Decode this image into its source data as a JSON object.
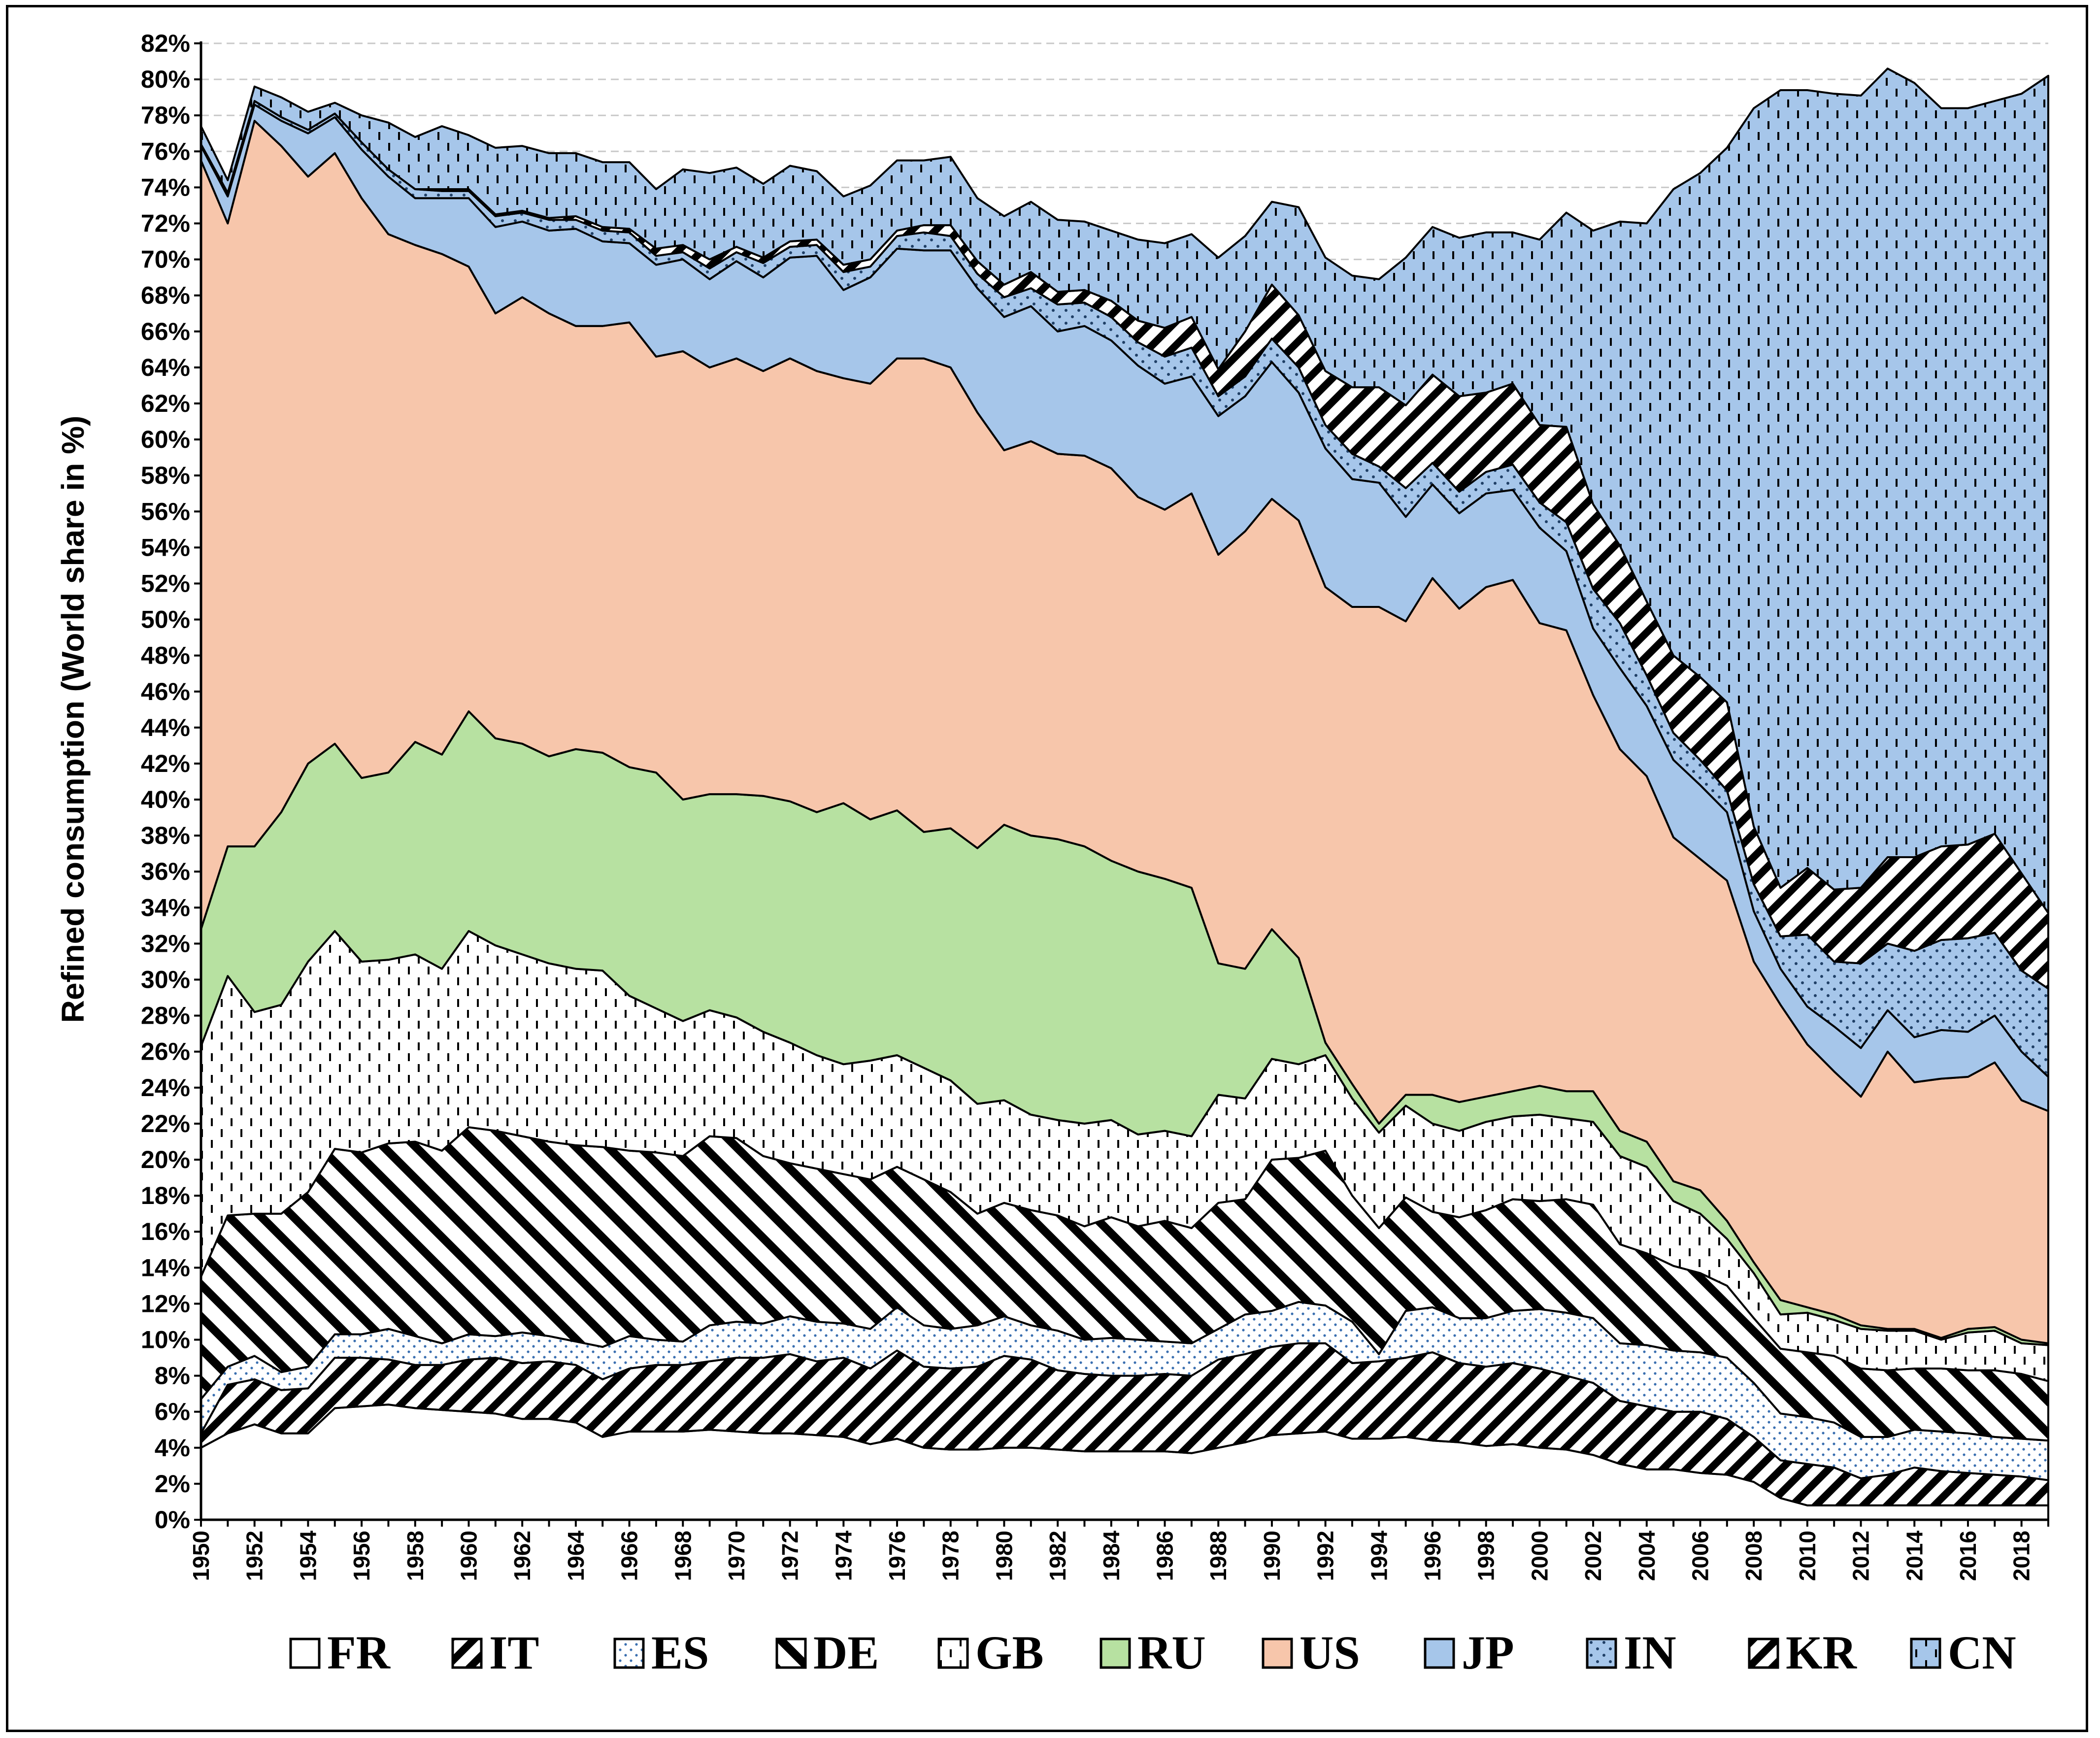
{
  "chart_data": {
    "type": "area",
    "stacked": true,
    "title": "",
    "xlabel": "",
    "ylabel": "Refined consumption (World share in %)",
    "ylim": [
      0,
      82
    ],
    "ytick_step": 2,
    "ytick_suffix": "%",
    "grid": "horizontal dashed",
    "legend_position": "bottom",
    "x": [
      1950,
      1951,
      1952,
      1953,
      1954,
      1955,
      1956,
      1957,
      1958,
      1959,
      1960,
      1961,
      1962,
      1963,
      1964,
      1965,
      1966,
      1967,
      1968,
      1969,
      1970,
      1971,
      1972,
      1973,
      1974,
      1975,
      1976,
      1977,
      1978,
      1979,
      1980,
      1981,
      1982,
      1983,
      1984,
      1985,
      1986,
      1987,
      1988,
      1989,
      1990,
      1991,
      1992,
      1993,
      1994,
      1995,
      1996,
      1997,
      1998,
      1999,
      2000,
      2001,
      2002,
      2003,
      2004,
      2005,
      2006,
      2007,
      2008,
      2009,
      2010,
      2011,
      2012,
      2013,
      2014,
      2015,
      2016,
      2017,
      2018,
      2019
    ],
    "xtick_labels": [
      "1950",
      "1952",
      "1954",
      "1956",
      "1958",
      "1960",
      "1962",
      "1964",
      "1966",
      "1968",
      "1970",
      "1972",
      "1974",
      "1976",
      "1978",
      "1980",
      "1982",
      "1984",
      "1986",
      "1988",
      "1990",
      "1992",
      "1994",
      "1996",
      "1998",
      "2000",
      "2002",
      "2004",
      "2006",
      "2008",
      "2010",
      "2012",
      "2014",
      "2016",
      "2018"
    ],
    "cumulative": true,
    "series": [
      {
        "name": "FR",
        "fill": "#ffffff",
        "pattern": "none",
        "values": [
          4.0,
          4.8,
          5.3,
          4.8,
          4.8,
          6.2,
          6.3,
          6.4,
          6.2,
          6.1,
          6.0,
          5.9,
          5.6,
          5.6,
          5.4,
          4.6,
          4.9,
          4.9,
          4.9,
          5.0,
          4.9,
          4.8,
          4.8,
          4.7,
          4.6,
          4.2,
          4.5,
          4.0,
          3.9,
          3.9,
          4.0,
          4.0,
          3.9,
          3.8,
          3.8,
          3.8,
          3.8,
          3.7,
          4.0,
          4.3,
          4.7,
          4.8,
          4.9,
          4.5,
          4.5,
          4.6,
          4.4,
          4.3,
          4.1,
          4.2,
          4.0,
          3.9,
          3.6,
          3.1,
          2.8,
          2.8,
          2.6,
          2.5,
          2.1,
          1.2,
          0.8,
          0.8,
          0.8,
          0.8,
          0.8,
          0.8,
          0.8,
          0.8,
          0.8,
          0.8
        ]
      },
      {
        "name": "IT",
        "fill": "#ffffff",
        "pattern": "diag-thick",
        "values": [
          4.8,
          7.5,
          7.8,
          7.2,
          7.3,
          9.0,
          9.0,
          8.9,
          8.6,
          8.6,
          8.9,
          9.0,
          8.7,
          8.8,
          8.6,
          7.8,
          8.4,
          8.6,
          8.6,
          8.8,
          9.0,
          9.0,
          9.2,
          8.8,
          9.0,
          8.4,
          9.4,
          8.5,
          8.4,
          8.5,
          9.1,
          8.9,
          8.3,
          8.1,
          8.0,
          8.0,
          8.1,
          8.0,
          8.9,
          9.2,
          9.6,
          9.8,
          9.8,
          8.7,
          8.8,
          9.0,
          9.3,
          8.7,
          8.5,
          8.7,
          8.4,
          8.0,
          7.6,
          6.6,
          6.3,
          6.0,
          6.0,
          5.6,
          4.6,
          3.3,
          3.1,
          2.9,
          2.3,
          2.5,
          2.9,
          2.7,
          2.6,
          2.5,
          2.4,
          2.2
        ]
      },
      {
        "name": "ES",
        "fill": "#ffffff",
        "pattern": "dots-blue",
        "values": [
          6.7,
          8.5,
          9.1,
          8.2,
          8.5,
          10.3,
          10.3,
          10.6,
          10.2,
          9.8,
          10.3,
          10.2,
          10.4,
          10.2,
          9.9,
          9.6,
          10.2,
          10.0,
          9.9,
          10.8,
          11.0,
          10.9,
          11.3,
          11.0,
          10.9,
          10.6,
          11.8,
          10.8,
          10.6,
          10.8,
          11.3,
          10.8,
          10.5,
          10.0,
          10.1,
          10.0,
          9.9,
          9.8,
          10.6,
          11.4,
          11.6,
          12.1,
          11.9,
          11.0,
          9.2,
          11.6,
          11.8,
          11.2,
          11.2,
          11.6,
          11.7,
          11.5,
          11.2,
          9.8,
          9.7,
          9.4,
          9.3,
          9.0,
          7.6,
          5.9,
          5.7,
          5.4,
          4.6,
          4.6,
          5.0,
          4.9,
          4.8,
          4.6,
          4.5,
          4.4
        ]
      },
      {
        "name": "DE",
        "fill": "#ffffff",
        "pattern": "diag-wide",
        "values": [
          13.5,
          16.9,
          17.0,
          17.0,
          18.2,
          20.6,
          20.4,
          20.9,
          21.0,
          20.5,
          21.8,
          21.6,
          21.3,
          21.0,
          20.8,
          20.7,
          20.5,
          20.4,
          20.2,
          21.3,
          21.2,
          20.2,
          19.8,
          19.5,
          19.2,
          18.9,
          19.6,
          18.9,
          18.2,
          17.0,
          17.6,
          17.2,
          16.9,
          16.3,
          16.8,
          16.3,
          16.6,
          16.2,
          17.6,
          17.8,
          20.0,
          20.1,
          20.5,
          18.0,
          16.2,
          17.9,
          17.1,
          16.8,
          17.2,
          17.8,
          17.7,
          17.8,
          17.5,
          15.3,
          14.8,
          14.1,
          13.7,
          13.0,
          11.2,
          9.5,
          9.3,
          9.1,
          8.4,
          8.3,
          8.4,
          8.4,
          8.3,
          8.3,
          8.1,
          7.7
        ]
      },
      {
        "name": "GB",
        "fill": "#ffffff",
        "pattern": "dashes-vertical",
        "values": [
          26.3,
          30.2,
          28.2,
          28.6,
          31.0,
          32.7,
          31.0,
          31.1,
          31.4,
          30.6,
          32.7,
          31.9,
          31.4,
          30.9,
          30.6,
          30.5,
          29.1,
          28.4,
          27.7,
          28.3,
          27.9,
          27.1,
          26.5,
          25.8,
          25.3,
          25.5,
          25.8,
          25.1,
          24.4,
          23.1,
          23.3,
          22.5,
          22.2,
          22.0,
          22.2,
          21.4,
          21.6,
          21.3,
          23.6,
          23.4,
          25.6,
          25.3,
          25.8,
          23.4,
          21.5,
          23.0,
          22.0,
          21.6,
          22.1,
          22.4,
          22.5,
          22.3,
          22.1,
          20.2,
          19.6,
          17.7,
          17.0,
          15.6,
          13.7,
          11.4,
          11.5,
          11.1,
          10.6,
          10.5,
          10.5,
          10.0,
          10.4,
          10.5,
          9.8,
          9.7
        ]
      },
      {
        "name": "RU",
        "fill": "#b7e1a1",
        "pattern": "none",
        "values": [
          32.8,
          37.4,
          37.4,
          39.3,
          42.0,
          43.1,
          41.2,
          41.5,
          43.2,
          42.5,
          44.9,
          43.4,
          43.1,
          42.4,
          42.8,
          42.6,
          41.8,
          41.5,
          40.0,
          40.3,
          40.3,
          40.2,
          39.9,
          39.3,
          39.8,
          38.9,
          39.4,
          38.2,
          38.4,
          37.3,
          38.6,
          38.0,
          37.8,
          37.4,
          36.6,
          36.0,
          35.6,
          35.1,
          30.9,
          30.6,
          32.8,
          31.2,
          26.5,
          24.2,
          22.0,
          23.6,
          23.6,
          23.2,
          23.5,
          23.8,
          24.1,
          23.8,
          23.8,
          21.6,
          21.0,
          18.8,
          18.3,
          16.6,
          14.3,
          12.2,
          11.8,
          11.4,
          10.8,
          10.6,
          10.6,
          10.1,
          10.6,
          10.7,
          10.0,
          9.8
        ]
      },
      {
        "name": "US",
        "fill": "#f7c6ab",
        "pattern": "none",
        "values": [
          75.5,
          72.0,
          77.7,
          76.3,
          74.6,
          75.9,
          73.4,
          71.4,
          70.8,
          70.3,
          69.6,
          67.0,
          67.9,
          67.0,
          66.3,
          66.3,
          66.5,
          64.6,
          64.9,
          64.0,
          64.5,
          63.8,
          64.5,
          63.8,
          63.4,
          63.1,
          64.5,
          64.5,
          64.0,
          61.5,
          59.4,
          59.9,
          59.2,
          59.1,
          58.4,
          56.8,
          56.1,
          57.0,
          53.6,
          54.9,
          56.7,
          55.5,
          51.8,
          50.7,
          50.7,
          49.9,
          52.3,
          50.6,
          51.8,
          52.2,
          49.8,
          49.4,
          45.8,
          42.8,
          41.3,
          37.9,
          36.7,
          35.5,
          31.0,
          28.6,
          26.4,
          24.9,
          23.5,
          26.0,
          24.3,
          24.5,
          24.6,
          25.4,
          23.3,
          22.7
        ]
      },
      {
        "name": "JP",
        "fill": "#a6c6ea",
        "pattern": "none",
        "values": [
          76.3,
          73.5,
          78.6,
          77.7,
          77.0,
          77.9,
          76.1,
          74.6,
          73.4,
          73.4,
          73.4,
          71.8,
          72.1,
          71.6,
          71.7,
          71.0,
          70.9,
          69.7,
          70.0,
          68.9,
          69.9,
          69.0,
          70.1,
          70.2,
          68.3,
          69.0,
          70.6,
          70.5,
          70.5,
          68.4,
          66.8,
          67.4,
          66.0,
          66.3,
          65.5,
          64.1,
          63.1,
          63.5,
          61.3,
          62.4,
          64.3,
          62.6,
          59.5,
          57.8,
          57.6,
          55.7,
          57.5,
          55.9,
          57.0,
          57.2,
          55.1,
          53.8,
          49.5,
          47.3,
          45.2,
          42.2,
          40.8,
          39.3,
          33.8,
          30.6,
          28.5,
          27.4,
          26.2,
          28.3,
          26.8,
          27.2,
          27.1,
          28.0,
          26.0,
          24.6
        ]
      },
      {
        "name": "IN",
        "fill": "#ffffff",
        "pattern": "dots-blue-dense",
        "values": [
          76.4,
          73.7,
          78.8,
          77.9,
          77.2,
          78.1,
          76.5,
          75.0,
          73.9,
          73.8,
          73.8,
          72.4,
          72.6,
          72.2,
          72.2,
          71.6,
          71.5,
          70.2,
          70.4,
          69.5,
          70.4,
          69.8,
          70.7,
          70.8,
          69.3,
          69.6,
          71.3,
          71.5,
          71.3,
          69.2,
          67.9,
          68.4,
          67.5,
          67.6,
          66.8,
          65.4,
          64.6,
          65.1,
          62.4,
          63.5,
          65.6,
          64.0,
          60.8,
          59.2,
          58.5,
          57.3,
          58.7,
          57.1,
          58.2,
          58.6,
          56.5,
          55.4,
          51.7,
          49.8,
          46.9,
          43.7,
          42.2,
          40.5,
          35.3,
          32.4,
          32.5,
          31.0,
          30.9,
          32.0,
          31.6,
          32.2,
          32.3,
          32.6,
          30.5,
          29.5
        ]
      },
      {
        "name": "KR",
        "fill": "#ffffff",
        "pattern": "diag-thick-neg",
        "values": [
          76.4,
          73.7,
          78.8,
          77.9,
          77.2,
          78.1,
          76.5,
          75.0,
          73.9,
          73.9,
          73.9,
          72.5,
          72.7,
          72.3,
          72.4,
          71.8,
          71.7,
          70.6,
          70.8,
          70.0,
          70.7,
          70.1,
          71.0,
          71.1,
          69.7,
          70.0,
          71.6,
          71.9,
          71.9,
          69.9,
          68.6,
          69.3,
          68.2,
          68.3,
          67.7,
          66.6,
          66.2,
          66.8,
          63.9,
          66.0,
          68.6,
          66.9,
          63.8,
          62.9,
          62.9,
          61.9,
          63.6,
          62.4,
          62.6,
          63.1,
          60.8,
          60.7,
          56.4,
          54.1,
          51.0,
          48.0,
          46.8,
          45.4,
          38.5,
          35.1,
          36.2,
          35.0,
          35.1,
          36.8,
          36.8,
          37.4,
          37.5,
          38.1,
          35.9,
          33.7
        ]
      },
      {
        "name": "CN",
        "fill": "#a6c6ea",
        "pattern": "dashes-vertical",
        "values": [
          77.4,
          74.4,
          79.6,
          79.0,
          78.2,
          78.7,
          78.0,
          77.6,
          76.8,
          77.4,
          76.9,
          76.2,
          76.3,
          75.9,
          75.9,
          75.4,
          75.4,
          73.9,
          75.0,
          74.8,
          75.1,
          74.2,
          75.2,
          74.9,
          73.5,
          74.1,
          75.5,
          75.5,
          75.7,
          73.4,
          72.4,
          73.2,
          72.2,
          72.1,
          71.6,
          71.1,
          70.9,
          71.4,
          70.1,
          71.3,
          73.2,
          72.9,
          70.1,
          69.1,
          68.9,
          70.1,
          71.8,
          71.2,
          71.5,
          71.5,
          71.1,
          72.6,
          71.6,
          72.1,
          72.0,
          73.9,
          74.8,
          76.2,
          78.4,
          79.4,
          79.4,
          79.2,
          79.1,
          80.6,
          79.8,
          78.4,
          78.4,
          78.8,
          79.2,
          80.2
        ]
      }
    ]
  }
}
